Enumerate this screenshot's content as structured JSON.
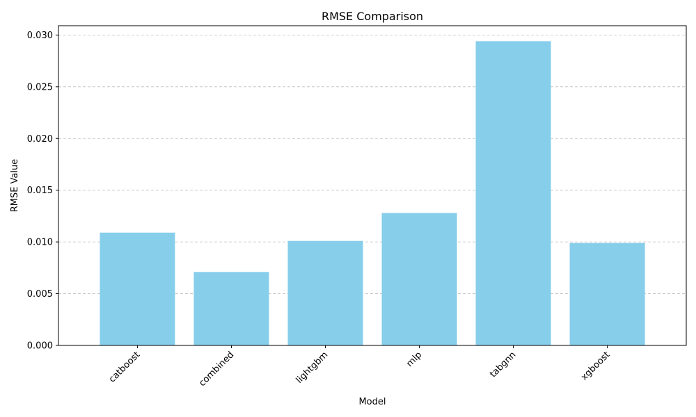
{
  "chart_data": {
    "type": "bar",
    "title": "RMSE Comparison",
    "xlabel": "Model",
    "ylabel": "RMSE Value",
    "categories": [
      "catboost",
      "combined",
      "lightgbm",
      "mlp",
      "tabgnn",
      "xgboost"
    ],
    "values": [
      0.0109,
      0.0071,
      0.0101,
      0.0128,
      0.0294,
      0.0099
    ],
    "ylim": [
      0,
      0.0309
    ],
    "yticks": [
      0.0,
      0.005,
      0.01,
      0.015,
      0.02,
      0.025,
      0.03
    ],
    "ytick_labels": [
      "0.000",
      "0.005",
      "0.010",
      "0.015",
      "0.020",
      "0.025",
      "0.030"
    ],
    "bar_color": "#87CEEB",
    "grid": "y-dashed",
    "xtick_rotation": 45
  }
}
